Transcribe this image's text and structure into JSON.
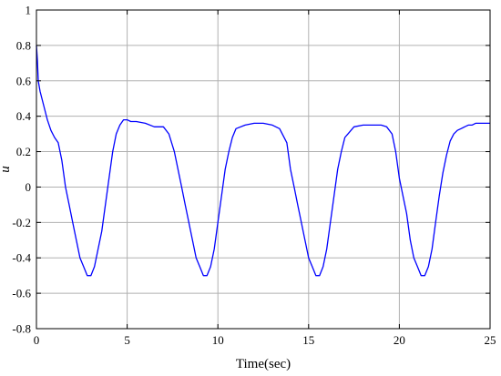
{
  "chart_data": {
    "type": "line",
    "title": "",
    "xlabel": "Time(sec)",
    "ylabel": "u",
    "xlim": [
      0,
      25
    ],
    "ylim": [
      -0.8,
      1
    ],
    "x_ticks": [
      0,
      5,
      10,
      15,
      20,
      25
    ],
    "x_tick_labels": [
      "0",
      "5",
      "10",
      "15",
      "20",
      "25"
    ],
    "y_ticks": [
      -0.8,
      -0.6,
      -0.4,
      -0.2,
      0,
      0.2,
      0.4,
      0.6,
      0.8,
      1
    ],
    "y_tick_labels": [
      "-0.8",
      "-0.6",
      "-0.4",
      "-0.2",
      "0",
      "0.2",
      "0.4",
      "0.6",
      "0.8",
      "1"
    ],
    "grid": true,
    "legend": "none",
    "series": [
      {
        "color": "#0000ff",
        "x": [
          0,
          0.05,
          0.1,
          0.2,
          0.4,
          0.6,
          0.8,
          1.0,
          1.2,
          1.4,
          1.6,
          1.8,
          2.0,
          2.2,
          2.4,
          2.6,
          2.8,
          3.0,
          3.2,
          3.4,
          3.6,
          3.8,
          4.0,
          4.2,
          4.4,
          4.6,
          4.8,
          5.0,
          5.2,
          5.5,
          6.0,
          6.5,
          7.0,
          7.3,
          7.6,
          7.8,
          8.0,
          8.2,
          8.4,
          8.6,
          8.8,
          9.0,
          9.2,
          9.4,
          9.6,
          9.8,
          10.0,
          10.2,
          10.4,
          10.6,
          10.8,
          11.0,
          11.5,
          12.0,
          12.5,
          13.0,
          13.4,
          13.8,
          14.0,
          14.2,
          14.4,
          14.6,
          14.8,
          15.0,
          15.2,
          15.4,
          15.6,
          15.8,
          16.0,
          16.2,
          16.4,
          16.6,
          16.8,
          17.0,
          17.5,
          18.0,
          18.5,
          19.0,
          19.3,
          19.6,
          19.8,
          20.0,
          20.2,
          20.4,
          20.6,
          20.8,
          21.0,
          21.2,
          21.4,
          21.6,
          21.8,
          22.0,
          22.2,
          22.4,
          22.6,
          22.8,
          23.0,
          23.2,
          23.4,
          23.6,
          23.8,
          24.0,
          24.2,
          24.5,
          25.0
        ],
        "y": [
          0.8,
          0.72,
          0.6,
          0.54,
          0.46,
          0.38,
          0.32,
          0.28,
          0.25,
          0.15,
          0.0,
          -0.1,
          -0.2,
          -0.3,
          -0.4,
          -0.45,
          -0.5,
          -0.5,
          -0.45,
          -0.35,
          -0.25,
          -0.1,
          0.05,
          0.2,
          0.3,
          0.35,
          0.38,
          0.38,
          0.37,
          0.37,
          0.36,
          0.34,
          0.34,
          0.3,
          0.2,
          0.1,
          0.0,
          -0.1,
          -0.2,
          -0.3,
          -0.4,
          -0.45,
          -0.5,
          -0.5,
          -0.45,
          -0.35,
          -0.2,
          -0.05,
          0.1,
          0.2,
          0.28,
          0.33,
          0.35,
          0.36,
          0.36,
          0.35,
          0.33,
          0.25,
          0.1,
          0.0,
          -0.1,
          -0.2,
          -0.3,
          -0.4,
          -0.45,
          -0.5,
          -0.5,
          -0.45,
          -0.35,
          -0.2,
          -0.05,
          0.1,
          0.2,
          0.28,
          0.34,
          0.35,
          0.35,
          0.35,
          0.34,
          0.3,
          0.2,
          0.05,
          -0.05,
          -0.15,
          -0.3,
          -0.4,
          -0.45,
          -0.5,
          -0.5,
          -0.45,
          -0.35,
          -0.2,
          -0.05,
          0.08,
          0.18,
          0.26,
          0.3,
          0.32,
          0.33,
          0.34,
          0.35,
          0.35,
          0.36,
          0.36,
          0.36
        ]
      }
    ]
  }
}
